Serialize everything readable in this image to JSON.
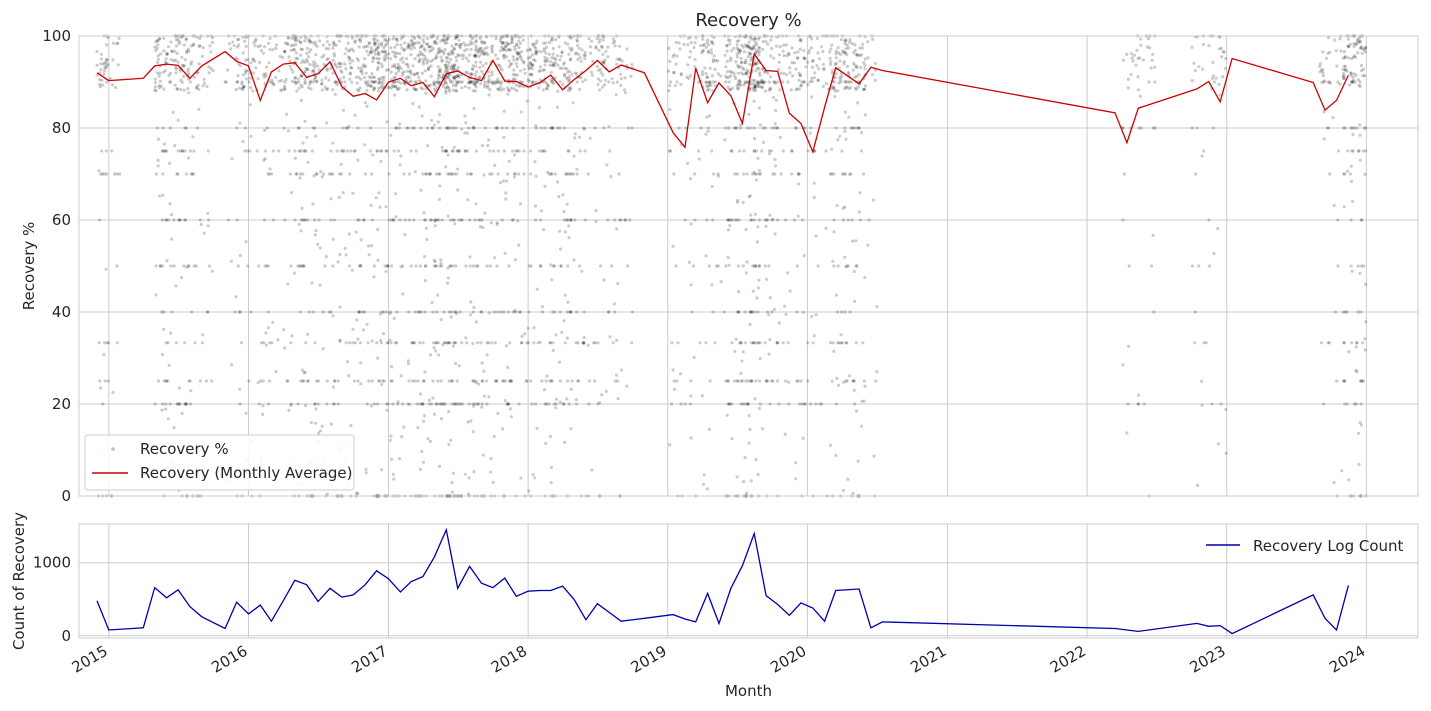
{
  "chart_data": [
    {
      "type": "scatter",
      "title": "Recovery %",
      "xlabel": "",
      "ylabel": "Recovery %",
      "xlim": [
        "2014-10-15",
        "2024-05-15"
      ],
      "ylim": [
        0,
        100
      ],
      "yticks": [
        0,
        20,
        40,
        60,
        80,
        100
      ],
      "grid": true,
      "legend_position": "lower-left",
      "colors": {
        "points": "#000000",
        "average": "#cc0000"
      },
      "scatter_series": {
        "name": "Recovery %",
        "active_months": [
          "2014-12",
          "2015-01",
          "2015-05",
          "2015-06",
          "2015-07",
          "2015-08",
          "2015-09",
          "2015-11",
          "2015-12",
          "2016-01",
          "2016-02",
          "2016-03",
          "2016-04",
          "2016-05",
          "2016-06",
          "2016-07",
          "2016-08",
          "2016-09",
          "2016-10",
          "2016-11",
          "2016-12",
          "2017-01",
          "2017-02",
          "2017-03",
          "2017-04",
          "2017-05",
          "2017-06",
          "2017-07",
          "2017-08",
          "2017-09",
          "2017-10",
          "2017-11",
          "2017-12",
          "2018-01",
          "2018-02",
          "2018-03",
          "2018-04",
          "2018-05",
          "2018-06",
          "2018-07",
          "2018-08",
          "2018-09",
          "2019-01",
          "2019-02",
          "2019-03",
          "2019-04",
          "2019-05",
          "2019-06",
          "2019-07",
          "2019-08",
          "2019-09",
          "2019-10",
          "2019-11",
          "2019-12",
          "2020-01",
          "2020-02",
          "2020-03",
          "2020-04",
          "2020-05",
          "2020-06",
          "2022-04",
          "2022-05",
          "2022-06",
          "2022-10",
          "2022-11",
          "2022-12",
          "2023-09",
          "2023-10",
          "2023-11",
          "2023-12"
        ],
        "common_values": [
          100,
          90,
          80,
          75,
          70,
          60,
          50,
          40,
          33.3,
          25,
          20,
          0
        ]
      },
      "line_series": {
        "name": "Recovery (Monthly Average)",
        "x": [
          "2014-12-01",
          "2015-01-01",
          "2015-04-01",
          "2015-05-01",
          "2015-06-01",
          "2015-07-01",
          "2015-08-01",
          "2015-09-01",
          "2015-11-01",
          "2015-12-01",
          "2016-01-01",
          "2016-02-01",
          "2016-03-01",
          "2016-04-01",
          "2016-05-01",
          "2016-06-01",
          "2016-07-01",
          "2016-08-01",
          "2016-09-01",
          "2016-10-01",
          "2016-11-01",
          "2016-12-01",
          "2017-01-01",
          "2017-02-01",
          "2017-03-01",
          "2017-04-01",
          "2017-05-01",
          "2017-06-01",
          "2017-07-01",
          "2017-08-01",
          "2017-09-01",
          "2017-10-01",
          "2017-11-01",
          "2017-12-01",
          "2018-01-01",
          "2018-02-01",
          "2018-03-01",
          "2018-04-01",
          "2018-05-01",
          "2018-06-01",
          "2018-07-01",
          "2018-08-01",
          "2018-09-01",
          "2018-11-01",
          "2019-01-15",
          "2019-02-15",
          "2019-03-15",
          "2019-04-15",
          "2019-05-15",
          "2019-06-15",
          "2019-07-15",
          "2019-08-15",
          "2019-09-15",
          "2019-10-15",
          "2019-11-15",
          "2019-12-15",
          "2020-01-15",
          "2020-02-15",
          "2020-03-15",
          "2020-05-15",
          "2020-06-15",
          "2020-07-15",
          "2022-03-15",
          "2022-04-15",
          "2022-05-15",
          "2022-10-15",
          "2022-11-15",
          "2022-12-15",
          "2023-01-15",
          "2023-08-15",
          "2023-09-15",
          "2023-10-15",
          "2023-11-15"
        ],
        "y": [
          92,
          90.3,
          90.8,
          93.5,
          93.9,
          93.6,
          90.8,
          93.5,
          96.6,
          94.5,
          93.5,
          86,
          92.2,
          93.9,
          94.2,
          91,
          91.8,
          94.4,
          89,
          86.9,
          87.5,
          86.1,
          90,
          90.8,
          89.2,
          89.9,
          86.8,
          91.8,
          92.4,
          91,
          90.3,
          94.7,
          90.2,
          90.1,
          88.9,
          89.9,
          91.5,
          88.3,
          90.5,
          92.5,
          94.7,
          92.2,
          93.7,
          92,
          79,
          75.8,
          93,
          85.5,
          89.8,
          87,
          81,
          96.1,
          92.5,
          92.3,
          83.2,
          81,
          74.8,
          84.5,
          93.1,
          89.6,
          93.2,
          92.5,
          83.3,
          76.8,
          84.3,
          88.5,
          90.1,
          85.7,
          95.1,
          89.9,
          83.9,
          86,
          91.5
        ]
      }
    },
    {
      "type": "line",
      "title": "",
      "xlabel": "Month",
      "ylabel": "Count of Recovery",
      "xlim": [
        "2014-10-15",
        "2024-05-15"
      ],
      "ylim": [
        -30,
        1530
      ],
      "yticks": [
        0,
        1000
      ],
      "xticks": [
        "2015",
        "2016",
        "2017",
        "2018",
        "2019",
        "2020",
        "2021",
        "2022",
        "2023",
        "2024"
      ],
      "grid": true,
      "legend_position": "upper-right",
      "colors": {
        "line": "#0000aa"
      },
      "series": [
        {
          "name": "Recovery Log Count",
          "x": [
            "2014-12-01",
            "2015-01-01",
            "2015-04-01",
            "2015-05-01",
            "2015-06-01",
            "2015-07-01",
            "2015-08-01",
            "2015-09-01",
            "2015-11-01",
            "2015-12-01",
            "2016-01-01",
            "2016-02-01",
            "2016-03-01",
            "2016-04-01",
            "2016-05-01",
            "2016-06-01",
            "2016-07-01",
            "2016-08-01",
            "2016-09-01",
            "2016-10-01",
            "2016-11-01",
            "2016-12-01",
            "2017-01-01",
            "2017-02-01",
            "2017-03-01",
            "2017-04-01",
            "2017-05-01",
            "2017-06-01",
            "2017-07-01",
            "2017-08-01",
            "2017-09-01",
            "2017-10-01",
            "2017-11-01",
            "2017-12-01",
            "2018-01-01",
            "2018-02-01",
            "2018-03-01",
            "2018-04-01",
            "2018-05-01",
            "2018-06-01",
            "2018-07-01",
            "2018-08-01",
            "2018-09-01",
            "2018-11-01",
            "2019-01-15",
            "2019-02-15",
            "2019-03-15",
            "2019-04-15",
            "2019-05-15",
            "2019-06-15",
            "2019-07-15",
            "2019-08-15",
            "2019-09-15",
            "2019-10-15",
            "2019-11-15",
            "2019-12-15",
            "2020-01-15",
            "2020-02-15",
            "2020-03-15",
            "2020-05-15",
            "2020-06-15",
            "2020-07-15",
            "2022-03-15",
            "2022-04-15",
            "2022-05-15",
            "2022-10-15",
            "2022-11-15",
            "2022-12-15",
            "2023-01-15",
            "2023-08-15",
            "2023-09-15",
            "2023-10-15",
            "2023-11-15"
          ],
          "y": [
            480,
            80,
            110,
            660,
            520,
            630,
            400,
            260,
            100,
            460,
            300,
            420,
            200,
            480,
            760,
            700,
            470,
            650,
            530,
            560,
            700,
            890,
            780,
            600,
            740,
            810,
            1080,
            1450,
            650,
            950,
            720,
            660,
            790,
            540,
            610,
            620,
            620,
            680,
            500,
            220,
            440,
            320,
            200,
            240,
            290,
            230,
            190,
            580,
            170,
            650,
            960,
            1400,
            550,
            430,
            280,
            450,
            380,
            200,
            620,
            640,
            110,
            190,
            100,
            80,
            60,
            170,
            130,
            140,
            30,
            560,
            240,
            80,
            690
          ]
        }
      ]
    }
  ]
}
